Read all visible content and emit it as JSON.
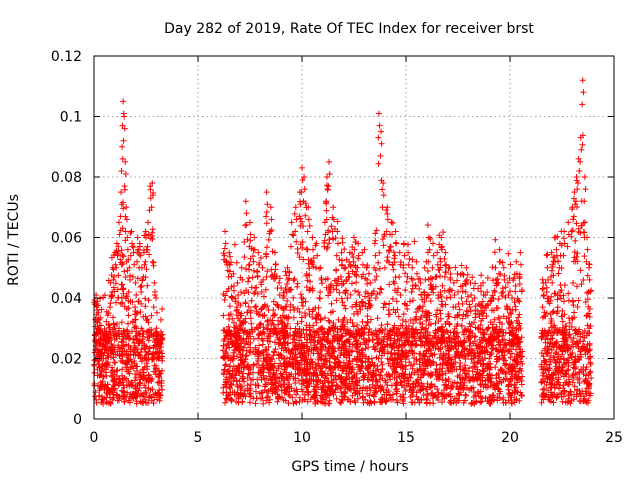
{
  "chart_data": {
    "type": "scatter",
    "title": "Day 282 of 2019, Rate Of TEC Index for receiver brst",
    "xlabel": "GPS time / hours",
    "ylabel": "ROTI / TECUs",
    "xlim": [
      0,
      25
    ],
    "ylim": [
      0,
      0.12
    ],
    "xticks": [
      0,
      5,
      10,
      15,
      20,
      25
    ],
    "xtick_labels": [
      "0",
      "5",
      "10",
      "15",
      "20",
      "25"
    ],
    "yticks": [
      0,
      0.02,
      0.04,
      0.06,
      0.08,
      0.1,
      0.12
    ],
    "ytick_labels": [
      "0",
      "0.02",
      "0.04",
      "0.06",
      "0.08",
      "0.1",
      "0.12"
    ],
    "grid": true,
    "marker": "+",
    "color": "#ff0000",
    "series": [
      {
        "name": "ROTI",
        "x": [
          0.1,
          0.15,
          0.2,
          0.3,
          0.35,
          0.5,
          0.6,
          0.7,
          0.8,
          0.9,
          1.0,
          1.1,
          1.2,
          1.3,
          1.35,
          1.4,
          1.45,
          1.5,
          1.55,
          1.6,
          1.7,
          1.8,
          1.9,
          2.0,
          2.1,
          2.2,
          2.3,
          2.4,
          2.5,
          2.6,
          2.7,
          2.8,
          2.9,
          3.0,
          3.1,
          3.2,
          6.3,
          6.5,
          6.7,
          6.9,
          7.1,
          7.3,
          7.5,
          7.7,
          7.9,
          8.1,
          8.3,
          8.5,
          8.7,
          8.9,
          9.1,
          9.3,
          9.5,
          9.7,
          9.9,
          10.0,
          10.1,
          10.3,
          10.5,
          10.7,
          10.9,
          11.1,
          11.2,
          11.3,
          11.5,
          11.7,
          11.9,
          12.1,
          12.3,
          12.5,
          12.7,
          12.9,
          13.1,
          13.3,
          13.5,
          13.7,
          13.8,
          13.9,
          14.1,
          14.3,
          14.5,
          14.7,
          14.9,
          15.1,
          15.3,
          15.5,
          15.7,
          15.9,
          16.1,
          16.3,
          16.5,
          16.7,
          16.9,
          17.1,
          17.3,
          17.5,
          17.7,
          17.9,
          18.1,
          18.3,
          18.5,
          18.7,
          18.9,
          19.1,
          19.3,
          19.5,
          19.7,
          19.9,
          20.1,
          20.3,
          20.5,
          21.6,
          21.8,
          22.0,
          22.2,
          22.4,
          22.6,
          22.8,
          23.0,
          23.1,
          23.2,
          23.3,
          23.4,
          23.5,
          23.6,
          23.7,
          23.8
        ],
        "y": [
          0.041,
          0.036,
          0.03,
          0.025,
          0.02,
          0.022,
          0.028,
          0.035,
          0.045,
          0.05,
          0.055,
          0.058,
          0.065,
          0.075,
          0.09,
          0.105,
          0.1,
          0.085,
          0.07,
          0.06,
          0.05,
          0.062,
          0.055,
          0.045,
          0.06,
          0.058,
          0.05,
          0.055,
          0.06,
          0.065,
          0.077,
          0.078,
          0.045,
          0.03,
          0.02,
          0.015,
          0.062,
          0.055,
          0.048,
          0.045,
          0.05,
          0.072,
          0.065,
          0.06,
          0.055,
          0.05,
          0.075,
          0.07,
          0.055,
          0.045,
          0.04,
          0.05,
          0.065,
          0.07,
          0.075,
          0.083,
          0.08,
          0.07,
          0.06,
          0.058,
          0.05,
          0.065,
          0.08,
          0.085,
          0.07,
          0.062,
          0.055,
          0.05,
          0.055,
          0.06,
          0.058,
          0.055,
          0.05,
          0.045,
          0.058,
          0.101,
          0.095,
          0.078,
          0.07,
          0.065,
          0.062,
          0.055,
          0.058,
          0.055,
          0.05,
          0.052,
          0.045,
          0.05,
          0.06,
          0.058,
          0.055,
          0.06,
          0.055,
          0.05,
          0.045,
          0.042,
          0.048,
          0.05,
          0.045,
          0.04,
          0.038,
          0.045,
          0.042,
          0.04,
          0.05,
          0.056,
          0.05,
          0.045,
          0.04,
          0.052,
          0.055,
          0.045,
          0.05,
          0.055,
          0.06,
          0.058,
          0.062,
          0.065,
          0.07,
          0.075,
          0.08,
          0.086,
          0.093,
          0.112,
          0.08,
          0.06,
          0.05
        ]
      }
    ],
    "data_windows_hours": [
      [
        0.0,
        3.3
      ],
      [
        6.2,
        20.6
      ],
      [
        21.5,
        23.9
      ]
    ],
    "baseline_range": [
      0.005,
      0.03
    ]
  }
}
